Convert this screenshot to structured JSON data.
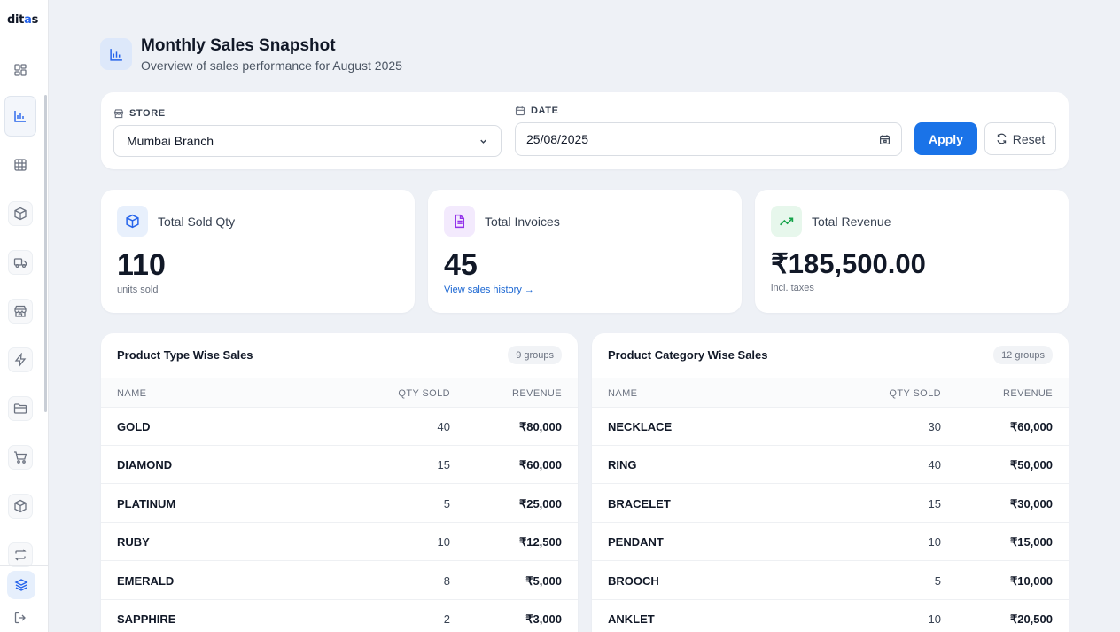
{
  "app": {
    "logo_main": "dit",
    "logo_accent": "a",
    "logo_tail": "s"
  },
  "header": {
    "title": "Monthly Sales Snapshot",
    "subtitle": "Overview of sales performance for August 2025"
  },
  "filters": {
    "store_label": "STORE",
    "store_value": "Mumbai Branch",
    "date_label": "DATE",
    "date_value": "25/08/2025",
    "apply_label": "Apply",
    "reset_label": "Reset"
  },
  "stats": [
    {
      "label": "Total Sold Qty",
      "value": "110",
      "foot": "units sold",
      "icon": "box-icon",
      "color": "#2563eb",
      "bg": "#e8f0fc"
    },
    {
      "label": "Total Invoices",
      "value": "45",
      "foot": "View sales history →",
      "icon": "document-icon",
      "color": "#9333ea",
      "bg": "#f3eafd"
    },
    {
      "label": "Total Revenue",
      "value": "₹185,500.00",
      "foot": "incl. taxes",
      "icon": "trending-up-icon",
      "color": "#16a34a",
      "bg": "#e7f7ec"
    }
  ],
  "product_type_table": {
    "title": "Product Type Wise Sales",
    "badge": "9 groups",
    "columns": [
      "NAME",
      "QTY SOLD",
      "REVENUE"
    ],
    "rows": [
      [
        "GOLD",
        "40",
        "₹80,000"
      ],
      [
        "DIAMOND",
        "15",
        "₹60,000"
      ],
      [
        "PLATINUM",
        "5",
        "₹25,000"
      ],
      [
        "RUBY",
        "10",
        "₹12,500"
      ],
      [
        "EMERALD",
        "8",
        "₹5,000"
      ],
      [
        "SAPPHIRE",
        "2",
        "₹3,000"
      ]
    ]
  },
  "product_category_table": {
    "title": "Product Category Wise Sales",
    "badge": "12 groups",
    "columns": [
      "NAME",
      "QTY SOLD",
      "REVENUE"
    ],
    "rows": [
      [
        "NECKLACE",
        "30",
        "₹60,000"
      ],
      [
        "RING",
        "40",
        "₹50,000"
      ],
      [
        "BRACELET",
        "15",
        "₹30,000"
      ],
      [
        "PENDANT",
        "10",
        "₹15,000"
      ],
      [
        "BROOCH",
        "5",
        "₹10,000"
      ],
      [
        "ANKLET",
        "10",
        "₹20,500"
      ]
    ]
  }
}
